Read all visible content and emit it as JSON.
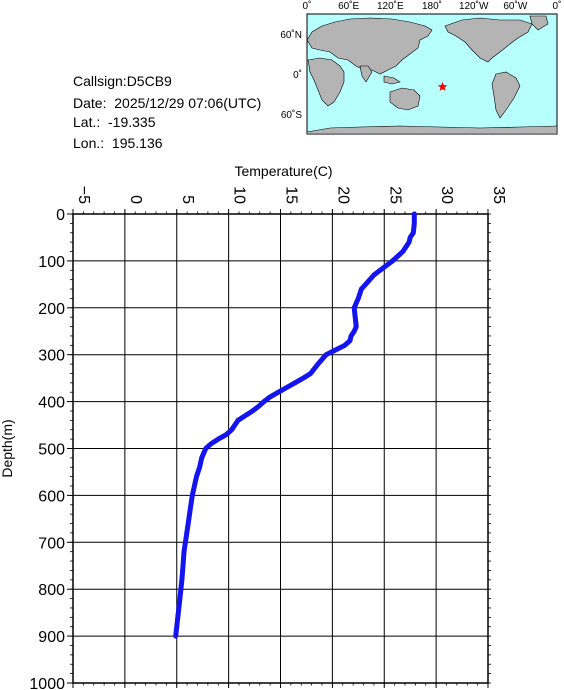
{
  "station": {
    "callsign_text": "Callsign:D5CB9",
    "date_text": "Date:  2025/12/29 07:06(UTC)",
    "lat_text": "Lat.:  -19.335",
    "lon_text": "Lon.:  195.136"
  },
  "map": {
    "lon_labels": [
      "0˚",
      "60˚E",
      "120˚E",
      "180˚",
      "120˚W",
      "60˚W",
      "0˚"
    ],
    "lat_labels": [
      "60˚N",
      "0˚",
      "60˚S"
    ],
    "marker_lat": -19.335,
    "marker_lon": 195.136,
    "ocean_color": "#b7ffff",
    "land_color": "#b4b4b4",
    "marker_color": "#ff0000"
  },
  "chart_data": {
    "type": "line",
    "title": "",
    "xlabel": "Temperature(C)",
    "ylabel": "Depth(m)",
    "xlim": [
      -5,
      35
    ],
    "ylim": [
      0,
      1000
    ],
    "y_inverted": true,
    "x_axis_position": "top",
    "x_ticks": [
      "-5",
      "0",
      "5",
      "10",
      "15",
      "20",
      "25",
      "30",
      "35"
    ],
    "y_ticks": [
      "0",
      "100",
      "200",
      "300",
      "400",
      "500",
      "600",
      "700",
      "800",
      "900",
      "1000"
    ],
    "grid": true,
    "series": [
      {
        "color": "#1414f0",
        "temperature": [
          27.9,
          27.9,
          27.8,
          27.5,
          27.4,
          26.8,
          25.8,
          24.6,
          24.0,
          23.2,
          22.8,
          22.5,
          22.3,
          22.1,
          22.2,
          22.3,
          22.1,
          21.8,
          21.7,
          21.2,
          20.3,
          19.4,
          18.6,
          17.9,
          17.2,
          16.4,
          15.6,
          14.8,
          14.0,
          13.4,
          12.9,
          12.3,
          11.6,
          10.9,
          10.6,
          10.3,
          9.8,
          9.0,
          8.3,
          7.8,
          7.6,
          7.4,
          7.2,
          6.9,
          6.7,
          6.5,
          6.3,
          6.1,
          5.9,
          5.7,
          5.6,
          5.5,
          5.3,
          5.1,
          4.9
        ],
        "depth": [
          0,
          20,
          40,
          50,
          60,
          80,
          100,
          120,
          130,
          150,
          160,
          180,
          190,
          200,
          220,
          240,
          250,
          260,
          270,
          280,
          290,
          300,
          320,
          340,
          350,
          360,
          370,
          380,
          390,
          400,
          410,
          420,
          430,
          440,
          450,
          460,
          470,
          480,
          490,
          500,
          510,
          520,
          540,
          560,
          580,
          600,
          630,
          660,
          690,
          720,
          750,
          780,
          820,
          860,
          900
        ]
      }
    ]
  }
}
